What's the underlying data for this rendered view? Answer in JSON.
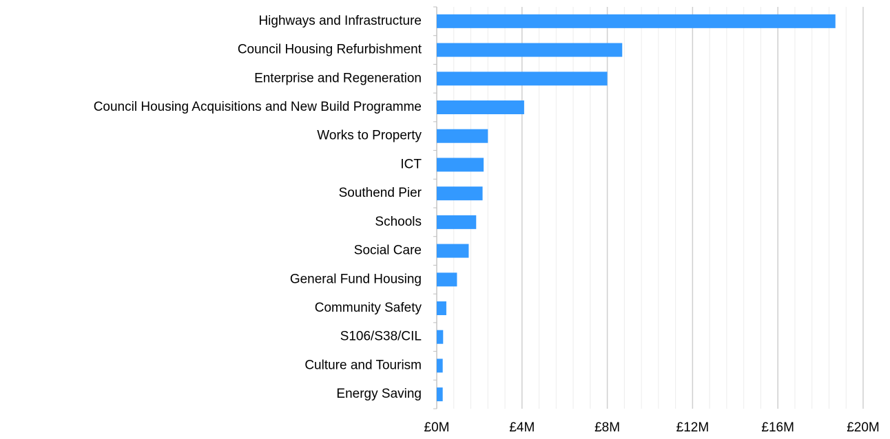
{
  "chart_data": {
    "type": "hbar",
    "categories": [
      "Highways and Infrastructure",
      "Council Housing Refurbishment",
      "Enterprise and Regeneration",
      "Council Housing Acquisitions and New Build Programme",
      "Works to Property",
      "ICT",
      "Southend Pier",
      "Schools",
      "Social Care",
      "General Fund Housing",
      "Community Safety",
      "S106/S38/CIL",
      "Culture and Tourism",
      "Energy Saving"
    ],
    "values": [
      18.7,
      8.7,
      8.0,
      4.1,
      2.4,
      2.2,
      2.15,
      1.85,
      1.5,
      0.95,
      0.45,
      0.3,
      0.28,
      0.28
    ],
    "color": "#3399ff",
    "xlim": [
      0,
      20
    ],
    "xticks": [
      {
        "value": 0,
        "label": "£0M"
      },
      {
        "value": 4,
        "label": "£4M"
      },
      {
        "value": 8,
        "label": "£8M"
      },
      {
        "value": 12,
        "label": "£12M"
      },
      {
        "value": 16,
        "label": "£16M"
      },
      {
        "value": 20,
        "label": "£20M"
      }
    ],
    "minor_xticks": [
      0.8,
      1.6,
      2.4,
      3.2,
      4.8,
      5.6,
      6.4,
      7.2,
      8.8,
      9.6,
      10.4,
      11.2,
      12.8,
      13.6,
      14.4,
      15.2,
      16.8,
      17.6,
      18.4,
      19.2
    ],
    "grid": true
  }
}
